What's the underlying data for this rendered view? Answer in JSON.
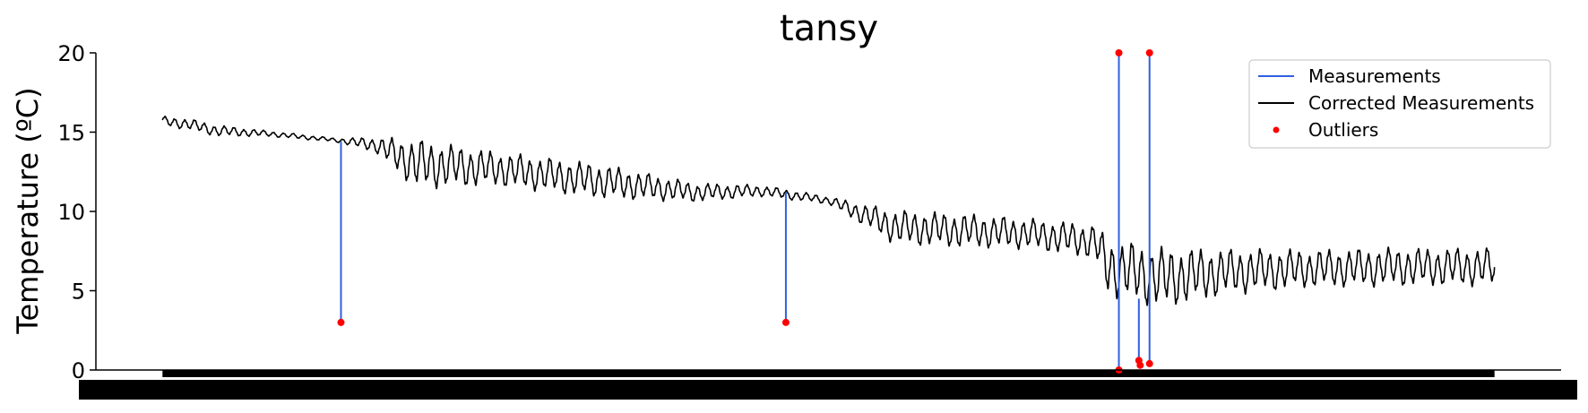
{
  "chart_data": {
    "type": "line",
    "title": "tansy",
    "xlabel": "",
    "ylabel": "Temperature (ºC)",
    "ylim": [
      0,
      20
    ],
    "yticks": [
      0,
      5,
      10,
      15,
      20
    ],
    "xlim": [
      -0.05,
      1.05
    ],
    "grid": false,
    "legend": {
      "placement": "top-right",
      "entries": [
        "Measurements",
        "Corrected Measurements",
        "Outliers"
      ]
    },
    "colors": {
      "measurements": "#3060e0",
      "corrected": "#000000",
      "outliers": "#ff0000"
    },
    "series": [
      {
        "name": "Corrected Measurements",
        "trend": {
          "x": [
            0.0,
            0.02,
            0.04,
            0.08,
            0.13,
            0.16,
            0.19,
            0.25,
            0.33,
            0.4,
            0.45,
            0.5,
            0.55,
            0.6,
            0.65,
            0.7,
            0.71,
            0.75,
            0.8,
            0.86,
            0.93,
            1.0
          ],
          "y": [
            15.7,
            15.5,
            15.1,
            14.9,
            14.5,
            14.2,
            13.0,
            12.7,
            11.9,
            11.2,
            11.3,
            10.7,
            9.0,
            8.8,
            8.6,
            8.1,
            6.5,
            5.8,
            6.2,
            6.4,
            6.5,
            6.5
          ],
          "amplitude": [
            0.25,
            0.3,
            0.3,
            0.15,
            0.1,
            0.4,
            1.3,
            0.9,
            0.9,
            0.5,
            0.3,
            0.2,
            0.9,
            0.9,
            0.8,
            0.9,
            1.5,
            1.6,
            1.2,
            1.0,
            1.0,
            1.0
          ]
        }
      },
      {
        "name": "Outliers",
        "points": [
          {
            "x": 0.134,
            "y": 3.0
          },
          {
            "x": 0.468,
            "y": 3.0
          },
          {
            "x": 0.718,
            "y": 20.0
          },
          {
            "x": 0.718,
            "y": 0.0
          },
          {
            "x": 0.733,
            "y": 0.6
          },
          {
            "x": 0.734,
            "y": 0.3
          },
          {
            "x": 0.741,
            "y": 20.0
          },
          {
            "x": 0.741,
            "y": 0.4
          }
        ]
      }
    ],
    "measurement_spikes": [
      {
        "x": 0.134,
        "from": 14.4,
        "to": 3.0
      },
      {
        "x": 0.468,
        "from": 11.2,
        "to": 3.0
      },
      {
        "x": 0.718,
        "from": 0.0,
        "to": 20.0
      },
      {
        "x": 0.733,
        "from": 4.5,
        "to": 0.3
      },
      {
        "x": 0.741,
        "from": 0.4,
        "to": 20.0
      }
    ]
  }
}
